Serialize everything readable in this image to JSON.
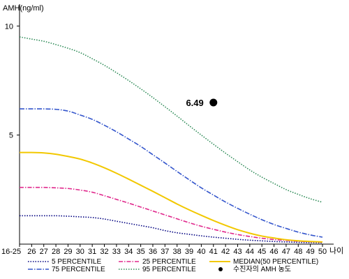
{
  "chart_data": {
    "type": "line",
    "ylabel": "AMH(ng/ml)",
    "xlabel": "나이",
    "ylim": [
      0,
      11
    ],
    "yticks": [
      5,
      10
    ],
    "categories": [
      "16-25",
      "26",
      "27",
      "28",
      "29",
      "30",
      "31",
      "32",
      "33",
      "34",
      "35",
      "36",
      "37",
      "38",
      "39",
      "40",
      "41",
      "42",
      "43",
      "44",
      "45",
      "46",
      "47",
      "48",
      "49",
      "50"
    ],
    "series": [
      {
        "name": "5 PERCENTILE",
        "color": "#000080",
        "dash": "1.5,2",
        "values": [
          1.3,
          1.3,
          1.3,
          1.3,
          1.28,
          1.25,
          1.22,
          1.15,
          1.05,
          0.95,
          0.85,
          0.75,
          0.62,
          0.52,
          0.45,
          0.38,
          0.32,
          0.27,
          0.22,
          0.18,
          0.15,
          0.12,
          0.1,
          0.08,
          0.07,
          0.06
        ]
      },
      {
        "name": "25 PERCENTILE",
        "color": "#e0288c",
        "dash": "6,2,1.5,2",
        "values": [
          2.6,
          2.6,
          2.6,
          2.58,
          2.55,
          2.48,
          2.38,
          2.22,
          2.05,
          1.88,
          1.7,
          1.52,
          1.34,
          1.16,
          0.98,
          0.82,
          0.68,
          0.55,
          0.44,
          0.35,
          0.27,
          0.21,
          0.17,
          0.13,
          0.11,
          0.09
        ]
      },
      {
        "name": "MEDIAN(50 PERCENTILE)",
        "color": "#f2c800",
        "dash": "",
        "values": [
          4.2,
          4.2,
          4.18,
          4.12,
          4.02,
          3.9,
          3.72,
          3.5,
          3.25,
          2.98,
          2.7,
          2.42,
          2.13,
          1.84,
          1.57,
          1.32,
          1.08,
          0.86,
          0.66,
          0.5,
          0.37,
          0.28,
          0.2,
          0.15,
          0.12,
          0.1
        ]
      },
      {
        "name": "75 PERCENTILE",
        "color": "#3355cc",
        "dash": "7,2,1.5,2",
        "values": [
          6.2,
          6.2,
          6.2,
          6.18,
          6.1,
          5.92,
          5.72,
          5.45,
          5.15,
          4.82,
          4.48,
          4.1,
          3.72,
          3.33,
          2.95,
          2.58,
          2.25,
          1.93,
          1.64,
          1.37,
          1.12,
          0.9,
          0.72,
          0.55,
          0.42,
          0.32
        ]
      },
      {
        "name": "95 PERCENTILE",
        "color": "#2e8b57",
        "dash": "1.5,2",
        "values": [
          9.5,
          9.4,
          9.3,
          9.15,
          8.98,
          8.78,
          8.5,
          8.2,
          7.86,
          7.5,
          7.12,
          6.72,
          6.3,
          5.87,
          5.43,
          5.0,
          4.58,
          4.17,
          3.78,
          3.4,
          3.07,
          2.78,
          2.5,
          2.28,
          2.08,
          1.92
        ]
      },
      {
        "name": "수진자의 AMH 농도",
        "color": "#000000",
        "type": "scatter",
        "points": [
          {
            "x": "41",
            "y": 6.49,
            "label": "6.49"
          }
        ]
      }
    ],
    "legend_position": "bottom",
    "grid": false
  }
}
